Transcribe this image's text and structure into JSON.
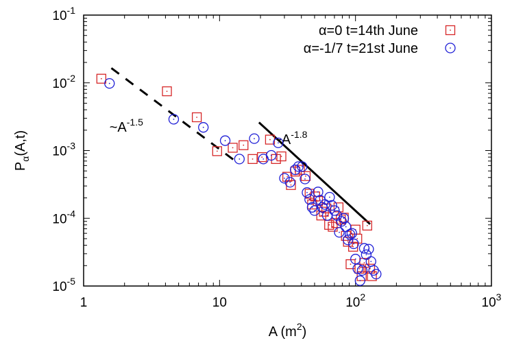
{
  "chart_data": {
    "type": "scatter",
    "xscale": "log",
    "yscale": "log",
    "xlim": [
      1,
      1000
    ],
    "ylim": [
      1e-05,
      0.1
    ],
    "xlabel": "A (m²)",
    "ylabel": "Pα(A,t)",
    "xlabel_parts": {
      "base": "A (m",
      "sup": "2",
      "tail": ")"
    },
    "ylabel_parts": {
      "base": "P",
      "sub": "α",
      "tail": "(A,t)"
    },
    "xticks": [
      {
        "value": 1,
        "base": "1",
        "exp": ""
      },
      {
        "value": 10,
        "base": "10",
        "exp": ""
      },
      {
        "value": 100,
        "base": "10",
        "exp": "2"
      },
      {
        "value": 1000,
        "base": "10",
        "exp": "3"
      }
    ],
    "yticks": [
      {
        "value": 1e-05,
        "base": "10",
        "exp": "-5"
      },
      {
        "value": 0.0001,
        "base": "10",
        "exp": "-4"
      },
      {
        "value": 0.001,
        "base": "10",
        "exp": "-3"
      },
      {
        "value": 0.01,
        "base": "10",
        "exp": "-2"
      },
      {
        "value": 0.1,
        "base": "10",
        "exp": "-1"
      }
    ],
    "grid": false,
    "legend_position": "top-right",
    "series": [
      {
        "name": "α=0  t=14th June",
        "marker": "square",
        "color": "#d62728",
        "points": [
          [
            1.35,
            0.0115
          ],
          [
            4.1,
            0.0075
          ],
          [
            6.8,
            0.0031
          ],
          [
            9.6,
            0.00098
          ],
          [
            12.5,
            0.0011
          ],
          [
            15.0,
            0.0012
          ],
          [
            17.5,
            0.00075
          ],
          [
            20.5,
            0.0008
          ],
          [
            23.5,
            0.00145
          ],
          [
            26.0,
            0.00075
          ],
          [
            28.5,
            0.00082
          ],
          [
            31.5,
            0.00041
          ],
          [
            33.5,
            0.00031
          ],
          [
            36.0,
            0.00049
          ],
          [
            39.0,
            0.00052
          ],
          [
            43.0,
            0.00042
          ],
          [
            46.0,
            0.00023
          ],
          [
            48.0,
            0.00016
          ],
          [
            50.5,
            0.00021
          ],
          [
            53.0,
            0.00018
          ],
          [
            56.0,
            0.00011
          ],
          [
            58.5,
            0.000125
          ],
          [
            61.0,
            0.00014
          ],
          [
            64.0,
            8e-05
          ],
          [
            68.0,
            7.5e-05
          ],
          [
            72.0,
            8.5e-05
          ],
          [
            75.0,
            0.000145
          ],
          [
            78.0,
            9.6e-05
          ],
          [
            82.0,
            0.000102
          ],
          [
            85.0,
            5.5e-05
          ],
          [
            88.0,
            4.5e-05
          ],
          [
            92.0,
            2.1e-05
          ],
          [
            96.0,
            3.8e-05
          ],
          [
            100.0,
            6.8e-05
          ],
          [
            103.0,
            5e-05
          ],
          [
            107.0,
            1.8e-05
          ],
          [
            111.0,
            1.4e-05
          ],
          [
            116.0,
            2.2e-05
          ],
          [
            122.0,
            7.8e-05
          ],
          [
            128.0,
            1.8e-05
          ],
          [
            132.0,
            1.4e-05
          ]
        ]
      },
      {
        "name": "α=-1/7  t=21st June",
        "marker": "circle",
        "color": "#1f1fd6",
        "points": [
          [
            1.55,
            0.0098
          ],
          [
            4.6,
            0.0029
          ],
          [
            7.6,
            0.0022
          ],
          [
            11.0,
            0.0014
          ],
          [
            14.0,
            0.00075
          ],
          [
            18.0,
            0.0015
          ],
          [
            21.0,
            0.00075
          ],
          [
            24.0,
            0.00085
          ],
          [
            27.0,
            0.0013
          ],
          [
            30.0,
            0.00039
          ],
          [
            33.0,
            0.00034
          ],
          [
            36.0,
            0.00052
          ],
          [
            38.0,
            0.00058
          ],
          [
            40.5,
            0.00058
          ],
          [
            42.5,
            0.00038
          ],
          [
            44.0,
            0.00024
          ],
          [
            46.0,
            0.00019
          ],
          [
            48.0,
            0.000145
          ],
          [
            50.0,
            0.00013
          ],
          [
            53.0,
            0.000245
          ],
          [
            55.0,
            0.000185
          ],
          [
            57.0,
            0.000145
          ],
          [
            59.5,
            0.00016
          ],
          [
            62.0,
            0.00011
          ],
          [
            64.5,
            0.000205
          ],
          [
            67.0,
            0.000155
          ],
          [
            70.0,
            0.00013
          ],
          [
            73.0,
            0.00011
          ],
          [
            76.0,
            6.2e-05
          ],
          [
            79.0,
            9e-05
          ],
          [
            82.0,
            0.0001
          ],
          [
            85.0,
            7.5e-05
          ],
          [
            88.0,
            4.8e-05
          ],
          [
            91.0,
            5.8e-05
          ],
          [
            94.0,
            6e-05
          ],
          [
            97.0,
            4.2e-05
          ],
          [
            100.0,
            2.5e-05
          ],
          [
            104.0,
            1.8e-05
          ],
          [
            108.0,
            1.2e-05
          ],
          [
            112.0,
            1.7e-05
          ],
          [
            116.0,
            3.6e-05
          ],
          [
            120.0,
            2.9e-05
          ],
          [
            125.0,
            3.5e-05
          ],
          [
            130.0,
            2.3e-05
          ],
          [
            136.0,
            1.7e-05
          ],
          [
            142.0,
            1.5e-05
          ]
        ]
      }
    ],
    "guide_lines": [
      {
        "name": "~A^-1.5",
        "style": "dashed",
        "exponent": -1.5,
        "from": [
          1.6,
          0.0165
        ],
        "to": [
          14.0,
          0.00063
        ]
      },
      {
        "name": "~A^-1.8",
        "style": "solid",
        "exponent": -1.8,
        "from": [
          19.5,
          0.0026
        ],
        "to": [
          128.0,
          8.2e-05
        ]
      }
    ],
    "annotations": [
      {
        "base": "~A",
        "exp": "-1.5"
      },
      {
        "base": "~A",
        "exp": "-1.8"
      }
    ]
  }
}
